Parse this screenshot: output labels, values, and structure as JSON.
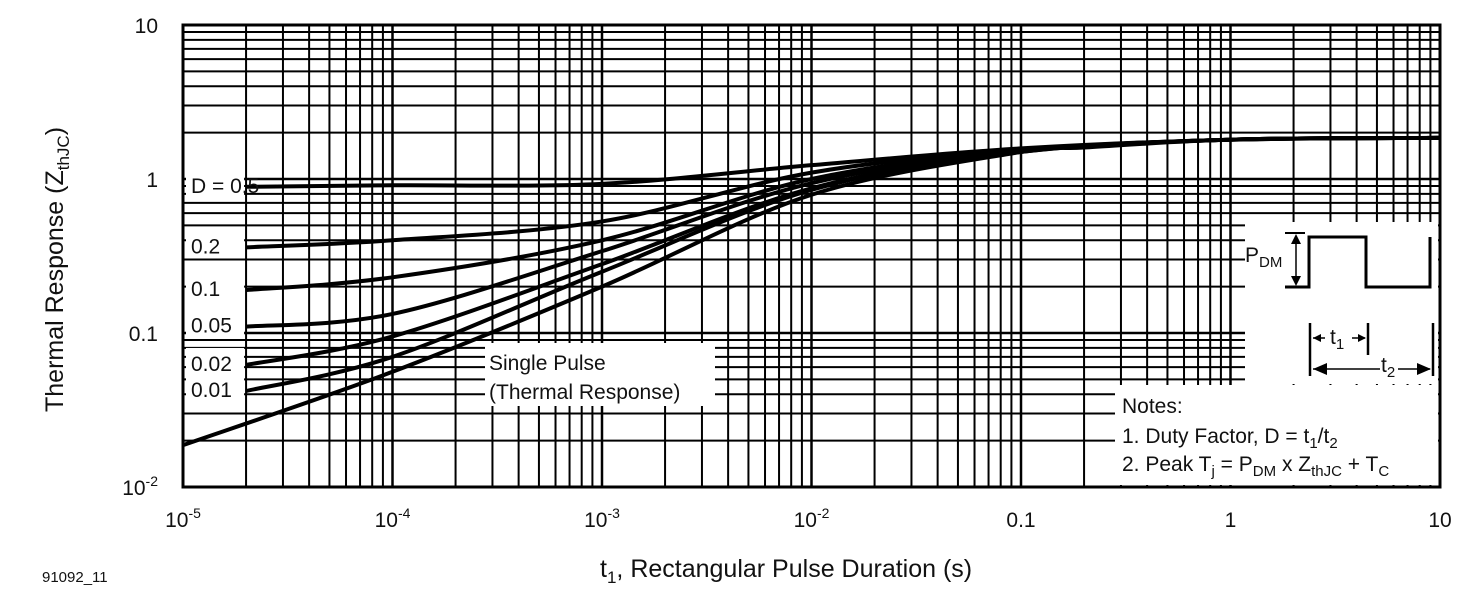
{
  "figure_id": "91092_11",
  "chart_data": {
    "type": "line",
    "xlabel": {
      "main": "t",
      "sub": "1",
      "rest": ", Rectangular Pulse Duration (s)"
    },
    "ylabel": {
      "main": "Thermal Response (Z",
      "sub": "thJC",
      "rest": ")"
    },
    "x_scale": "log",
    "y_scale": "log",
    "xlim": [
      1e-05,
      10
    ],
    "ylim": [
      0.01,
      10
    ],
    "grid": true,
    "x_ticks": [
      {
        "value": 1e-05,
        "base": "10",
        "exp": "-5"
      },
      {
        "value": 0.0001,
        "base": "10",
        "exp": "-4"
      },
      {
        "value": 0.001,
        "base": "10",
        "exp": "-3"
      },
      {
        "value": 0.01,
        "base": "10",
        "exp": "-2"
      },
      {
        "value": 0.1,
        "base": "0.1",
        "exp": ""
      },
      {
        "value": 1,
        "base": "1",
        "exp": ""
      },
      {
        "value": 10,
        "base": "10",
        "exp": ""
      }
    ],
    "y_ticks": [
      {
        "value": 10,
        "base": "10",
        "exp": ""
      },
      {
        "value": 1,
        "base": "1",
        "exp": ""
      },
      {
        "value": 0.1,
        "base": "0.1",
        "exp": ""
      },
      {
        "value": 0.01,
        "base": "10",
        "exp": "-2"
      }
    ],
    "series": [
      {
        "name": "D = 0.5",
        "x": [
          2e-05,
          0.0001,
          0.001,
          0.01,
          0.1,
          1,
          10
        ],
        "y": [
          0.89,
          0.91,
          0.93,
          1.23,
          1.58,
          1.8,
          1.85
        ]
      },
      {
        "name": "0.2",
        "x": [
          2e-05,
          0.0001,
          0.001,
          0.01,
          0.1,
          1,
          10
        ],
        "y": [
          0.36,
          0.4,
          0.53,
          1.1,
          1.55,
          1.8,
          1.85
        ]
      },
      {
        "name": "0.1",
        "x": [
          2e-05,
          0.0001,
          0.001,
          0.01,
          0.1,
          1,
          10
        ],
        "y": [
          0.19,
          0.23,
          0.4,
          1.0,
          1.53,
          1.8,
          1.85
        ]
      },
      {
        "name": "0.05",
        "x": [
          2e-05,
          0.0001,
          0.001,
          0.01,
          0.1,
          1,
          10
        ],
        "y": [
          0.11,
          0.133,
          0.34,
          0.94,
          1.52,
          1.8,
          1.85
        ]
      },
      {
        "name": "0.02",
        "x": [
          2e-05,
          0.0001,
          0.001,
          0.01,
          0.1,
          1,
          10
        ],
        "y": [
          0.062,
          0.095,
          0.28,
          0.87,
          1.5,
          1.8,
          1.85
        ]
      },
      {
        "name": "0.01",
        "x": [
          2e-05,
          0.0001,
          0.001,
          0.01,
          0.1,
          1,
          10
        ],
        "y": [
          0.042,
          0.07,
          0.25,
          0.85,
          1.5,
          1.8,
          1.85
        ]
      },
      {
        "name": "Single Pulse (Thermal Response)",
        "x": [
          1e-05,
          0.0001,
          0.001,
          0.01,
          0.1,
          0.2,
          1,
          10
        ],
        "y": [
          0.0187,
          0.056,
          0.2,
          0.79,
          1.5,
          1.6,
          1.8,
          1.85
        ]
      }
    ],
    "annotations": {
      "single_pulse_line1": "Single Pulse",
      "single_pulse_line2": "(Thermal Response)",
      "pdm": {
        "main": "P",
        "sub": "DM"
      },
      "t1": {
        "main": "t",
        "sub": "1"
      },
      "t2": {
        "main": "t",
        "sub": "2"
      },
      "notes_title": "Notes:",
      "note1": {
        "a": "1.  Duty Factor, D = t",
        "s1": "1",
        "b": "/t",
        "s2": "2"
      },
      "note2": {
        "a": "2.  Peak T",
        "s1": "j",
        "b": " = P",
        "s2": "DM",
        "c": " x Z",
        "s3": "thJC",
        "d": " + T",
        "s4": "C"
      }
    },
    "colors": {
      "line": "#000000",
      "background": "#ffffff"
    }
  }
}
